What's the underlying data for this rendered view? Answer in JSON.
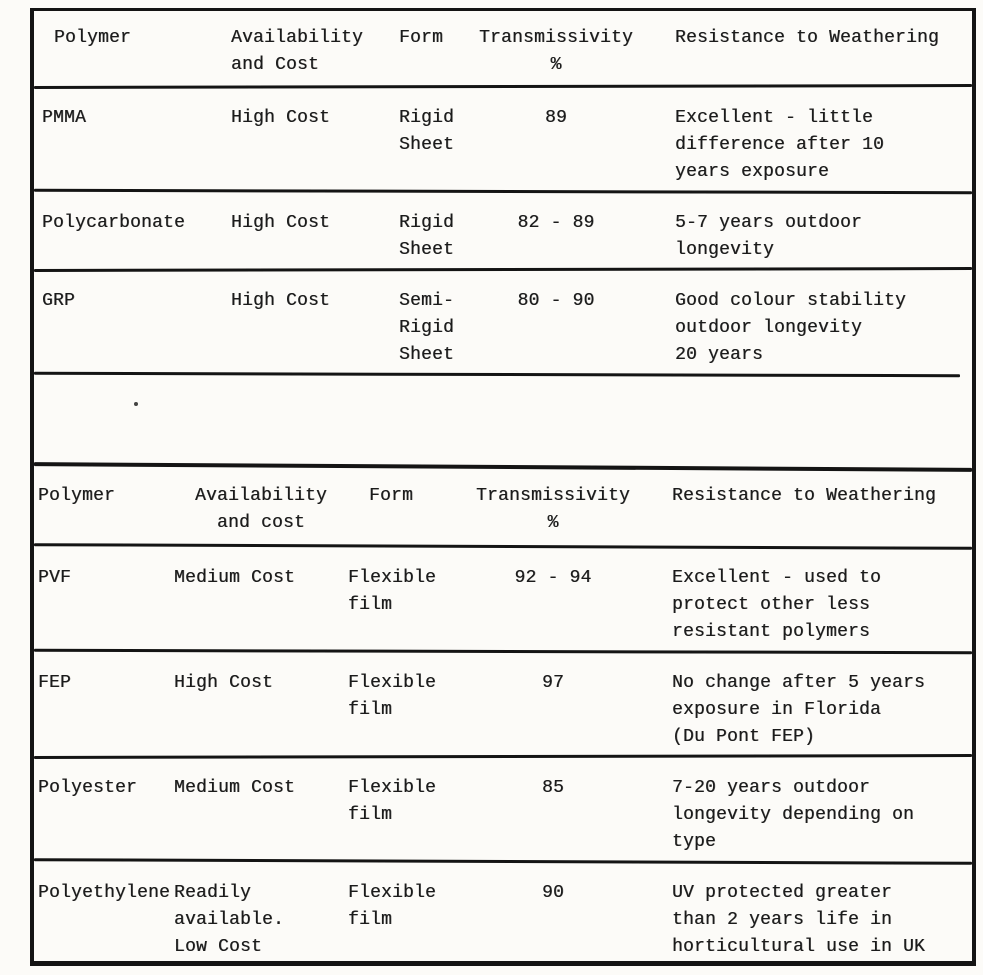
{
  "colors": {
    "paper": "#fcfbf8",
    "ink": "#1b1b1b",
    "line": "#141414"
  },
  "table_top": {
    "header": {
      "polymer": "Polymer",
      "availability": "Availability\nand Cost",
      "form": "Form",
      "transmissivity": "Transmissivity\n%",
      "resistance": "Resistance to Weathering"
    },
    "rows": [
      {
        "polymer": "PMMA",
        "availability": "High Cost",
        "form": "Rigid\nSheet",
        "transmissivity": "89",
        "resistance": "Excellent - little\ndifference after 10\nyears exposure"
      },
      {
        "polymer": "Polycarbonate",
        "availability": "High Cost",
        "form": "Rigid\nSheet",
        "transmissivity": "82 - 89",
        "resistance": "5-7 years outdoor\nlongevity"
      },
      {
        "polymer": "GRP",
        "availability": "High Cost",
        "form": "Semi-\nRigid\nSheet",
        "transmissivity": "80 - 90",
        "resistance": "Good colour stability\noutdoor longevity\n20 years"
      }
    ]
  },
  "table_bottom": {
    "header": {
      "polymer": "Polymer",
      "availability": "Availability\nand cost",
      "form": "Form",
      "transmissivity": "Transmissivity\n%",
      "resistance": "Resistance to Weathering"
    },
    "rows": [
      {
        "polymer": "PVF",
        "availability": "Medium Cost",
        "form": "Flexible\nfilm",
        "transmissivity": "92 - 94",
        "resistance": "Excellent - used to\nprotect other less\nresistant polymers"
      },
      {
        "polymer": "FEP",
        "availability": "High Cost",
        "form": "Flexible\nfilm",
        "transmissivity": "97",
        "resistance": "No change after 5 years\nexposure in Florida\n(Du Pont FEP)"
      },
      {
        "polymer": "Polyester",
        "availability": "Medium Cost",
        "form": "Flexible\nfilm",
        "transmissivity": "85",
        "resistance": "7-20 years outdoor\nlongevity depending on\ntype"
      },
      {
        "polymer": "Polyethylene",
        "availability": "Readily\navailable.\nLow Cost",
        "form": "Flexible\nfilm",
        "transmissivity": "90",
        "resistance": "UV protected greater\nthan 2 years life in\nhorticultural use in UK"
      }
    ]
  }
}
